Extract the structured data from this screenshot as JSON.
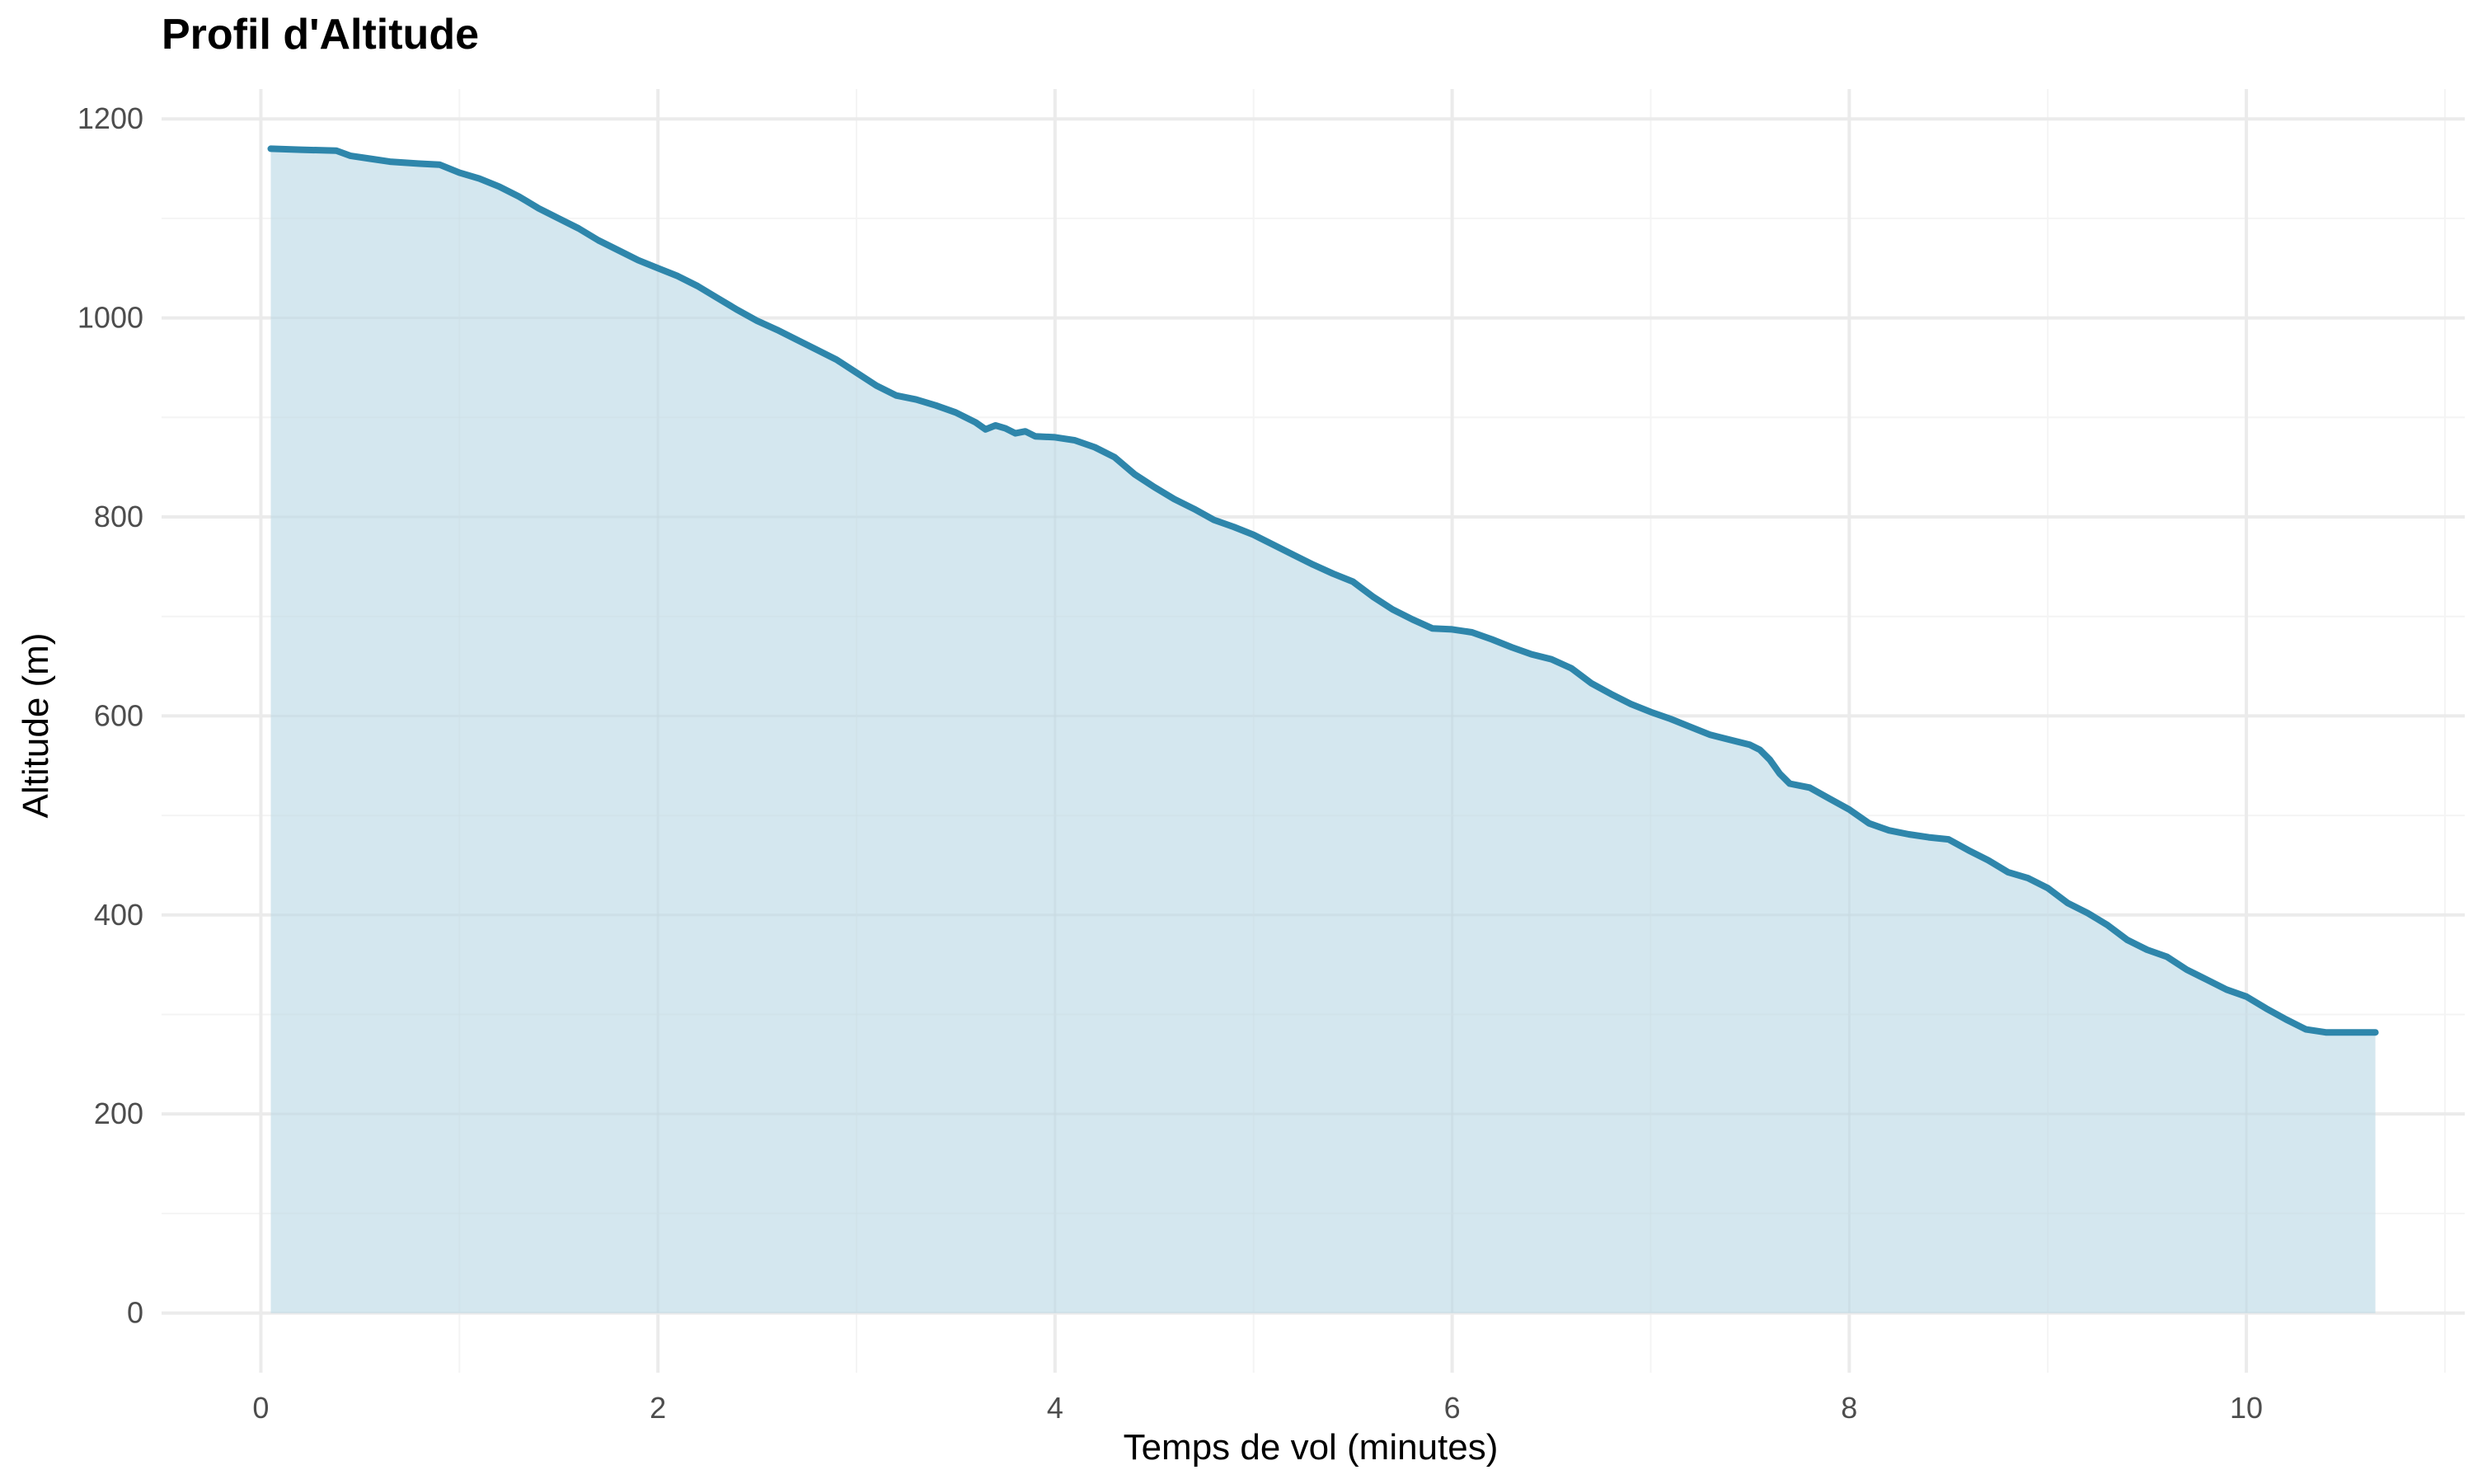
{
  "chart_data": {
    "type": "area",
    "title": "Profil d'Altitude",
    "xlabel": "Temps de vol (minutes)",
    "ylabel": "Altitude (m)",
    "xlim": [
      -0.5,
      11.1
    ],
    "ylim": [
      -60,
      1230
    ],
    "x_ticks": [
      0,
      2,
      4,
      6,
      8,
      10
    ],
    "y_ticks": [
      0,
      200,
      400,
      600,
      800,
      1000,
      1200
    ],
    "x_minor": [
      1,
      3,
      5,
      7,
      9,
      11
    ],
    "y_minor": [
      100,
      300,
      500,
      700,
      900,
      1100
    ],
    "grid": true,
    "colors": {
      "line": "#2e86ab",
      "fill": "#d4e7ef",
      "grid_major": "#ebebeb",
      "grid_minor": "#f4f4f4"
    },
    "series": [
      {
        "x": [
          0.05,
          0.2,
          0.38,
          0.45,
          0.55,
          0.65,
          0.72,
          0.8,
          0.9,
          1.0,
          1.1,
          1.2,
          1.3,
          1.4,
          1.5,
          1.6,
          1.7,
          1.8,
          1.9,
          2.0,
          2.1,
          2.2,
          2.3,
          2.4,
          2.5,
          2.6,
          2.7,
          2.8,
          2.9,
          3.0,
          3.1,
          3.2,
          3.3,
          3.4,
          3.5,
          3.6,
          3.65,
          3.7,
          3.75,
          3.8,
          3.85,
          3.9,
          4.0,
          4.1,
          4.2,
          4.3,
          4.4,
          4.5,
          4.6,
          4.7,
          4.8,
          4.9,
          5.0,
          5.1,
          5.2,
          5.3,
          5.4,
          5.5,
          5.6,
          5.7,
          5.8,
          5.9,
          6.0,
          6.1,
          6.2,
          6.3,
          6.4,
          6.5,
          6.6,
          6.7,
          6.8,
          6.9,
          7.0,
          7.1,
          7.2,
          7.3,
          7.4,
          7.5,
          7.55,
          7.6,
          7.65,
          7.7,
          7.8,
          7.9,
          8.0,
          8.1,
          8.2,
          8.3,
          8.4,
          8.5,
          8.6,
          8.7,
          8.8,
          8.9,
          9.0,
          9.1,
          9.2,
          9.3,
          9.4,
          9.5,
          9.6,
          9.7,
          9.8,
          9.9,
          10.0,
          10.1,
          10.2,
          10.3,
          10.4,
          10.5,
          10.65
        ],
        "y": [
          1170,
          1169,
          1168,
          1163,
          1160,
          1157,
          1156,
          1155,
          1154,
          1146,
          1140,
          1132,
          1122,
          1110,
          1100,
          1090,
          1078,
          1068,
          1058,
          1050,
          1042,
          1032,
          1020,
          1008,
          997,
          988,
          978,
          968,
          958,
          945,
          932,
          922,
          918,
          912,
          905,
          895,
          888,
          892,
          889,
          884,
          886,
          881,
          880,
          877,
          870,
          860,
          843,
          830,
          818,
          808,
          797,
          790,
          782,
          772,
          762,
          752,
          743,
          735,
          720,
          707,
          697,
          688,
          687,
          684,
          677,
          669,
          662,
          657,
          648,
          633,
          622,
          612,
          604,
          597,
          589,
          581,
          576,
          571,
          566,
          556,
          542,
          532,
          528,
          517,
          506,
          492,
          485,
          481,
          478,
          476,
          465,
          455,
          443,
          437,
          427,
          412,
          402,
          390,
          375,
          365,
          358,
          345,
          335,
          325,
          318,
          306,
          295,
          285,
          282,
          282,
          282
        ]
      }
    ]
  }
}
